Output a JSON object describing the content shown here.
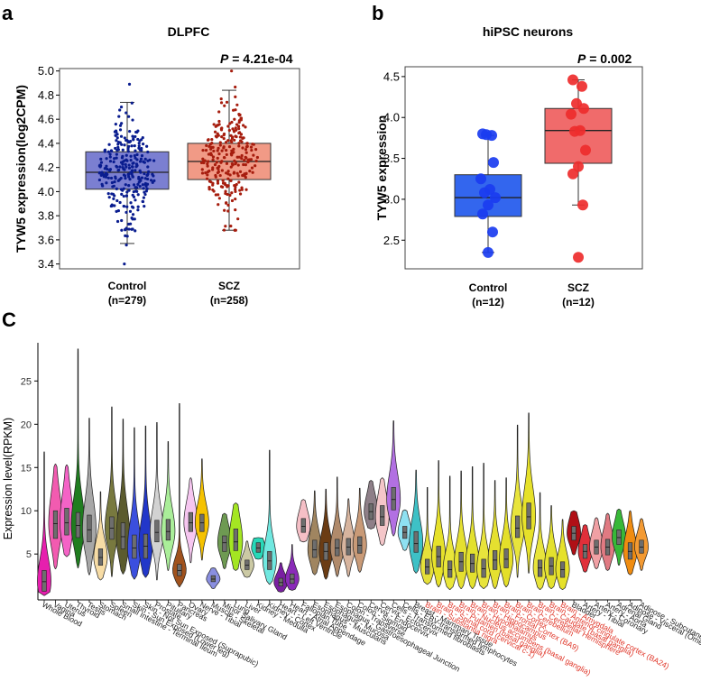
{
  "chart_data": [
    {
      "panel": "a",
      "type": "box",
      "title": "DLPFC",
      "pvalue_label": "P",
      "pvalue_text": " = 4.21e-04",
      "ylabel": "TYW5 expression(log2CPM)",
      "ylim": [
        3.36,
        5.02
      ],
      "yticks": [
        "3.4",
        "3.6",
        "3.8",
        "4.0",
        "4.2",
        "4.4",
        "4.6",
        "4.8",
        "5.0"
      ],
      "groups": [
        {
          "name": "Control",
          "n_label": "(n=279)",
          "n": 279,
          "fill": "#7b7fd1",
          "point": "#0a1d8f",
          "q1": 4.02,
          "median": 4.16,
          "q3": 4.33,
          "whisker_low": 3.57,
          "whisker_high": 4.74,
          "min": 3.4,
          "max": 4.89
        },
        {
          "name": "SCZ",
          "n_label": "(n=258)",
          "n": 258,
          "fill": "#f19a86",
          "point": "#a61d0e",
          "q1": 4.1,
          "median": 4.25,
          "q3": 4.4,
          "whisker_low": 3.68,
          "whisker_high": 4.84,
          "min": 3.68,
          "max": 5.0
        }
      ]
    },
    {
      "panel": "b",
      "type": "box",
      "title": "hiPSC neurons",
      "pvalue_label": "P",
      "pvalue_text": " = 0.002",
      "ylabel": "TYW5 expression",
      "ylim": [
        2.15,
        4.62
      ],
      "yticks": [
        "2.5",
        "3.0",
        "3.5",
        "4.0",
        "4.5"
      ],
      "groups": [
        {
          "name": "Control",
          "n_label": "(n=12)",
          "n": 12,
          "fill": "#3366ee",
          "point": "#1a3cf0",
          "q1": 2.79,
          "median": 3.02,
          "q3": 3.3,
          "whisker_low": 2.35,
          "whisker_high": 3.78,
          "points": [
            3.8,
            3.78,
            3.79,
            3.45,
            3.25,
            3.12,
            3.08,
            3.02,
            2.93,
            2.82,
            2.6,
            2.35
          ]
        },
        {
          "name": "SCZ",
          "n_label": "(n=12)",
          "n": 12,
          "fill": "#f06b6b",
          "point": "#ee2d2d",
          "q1": 3.44,
          "median": 3.84,
          "q3": 4.11,
          "whisker_low": 2.93,
          "whisker_high": 4.46,
          "points": [
            4.46,
            4.38,
            4.17,
            4.11,
            4.04,
            3.84,
            3.83,
            3.6,
            3.4,
            3.31,
            2.93,
            2.29
          ]
        }
      ]
    },
    {
      "panel": "c",
      "type": "violin",
      "ylabel": "Expression level(RPKM)",
      "ylim": [
        -0.3,
        29
      ],
      "yticks": [
        {
          "v": 5,
          "label": "5"
        },
        {
          "v": 10,
          "label": "10"
        },
        {
          "v": 15,
          "label": "15"
        },
        {
          "v": 20,
          "label": "20"
        },
        {
          "v": 25,
          "label": "25"
        }
      ],
      "brain_label_color": "#e0372a",
      "tissues": [
        {
          "label": "Whole Blood",
          "color": "#e61fae",
          "min": 0.2,
          "max": 16.8,
          "q1": 0.7,
          "med": 1.8,
          "q3": 3.1,
          "brain": false
        },
        {
          "label": "Vagina",
          "color": "#f25bb0",
          "min": 3.3,
          "max": 15.4,
          "q1": 6.8,
          "med": 8.5,
          "q3": 10.0,
          "brain": false
        },
        {
          "label": "Uterus",
          "color": "#f463c6",
          "min": 4.7,
          "max": 15.3,
          "q1": 7.2,
          "med": 8.6,
          "q3": 10.3,
          "brain": false
        },
        {
          "label": "Thyroid",
          "color": "#1f7d1f",
          "min": 3.4,
          "max": 28.7,
          "q1": 6.9,
          "med": 8.3,
          "q3": 9.8,
          "brain": false
        },
        {
          "label": "Testis",
          "color": "#a7a7a7",
          "min": 2.6,
          "max": 20.7,
          "q1": 6.4,
          "med": 7.8,
          "q3": 9.5,
          "brain": false
        },
        {
          "label": "Stomach",
          "color": "#f7dca5",
          "min": 2.0,
          "max": 12.2,
          "q1": 3.7,
          "med": 4.6,
          "q3": 5.6,
          "brain": false
        },
        {
          "label": "Spleen",
          "color": "#78793f",
          "min": 2.4,
          "max": 22.0,
          "q1": 6.7,
          "med": 8.0,
          "q3": 9.3,
          "brain": false
        },
        {
          "label": "Small Intestine - Terminal Ileum",
          "color": "#5b5b2e",
          "min": 2.7,
          "max": 20.6,
          "q1": 5.6,
          "med": 7.0,
          "q3": 8.6,
          "brain": false
        },
        {
          "label": "Skin - Sun Exposed (Lower leg)",
          "color": "#3b4fde",
          "min": 2.1,
          "max": 19.6,
          "q1": 4.5,
          "med": 5.7,
          "q3": 7.2,
          "brain": false
        },
        {
          "label": "Skin - Not Sun Exposed (Suprapubic)",
          "color": "#2237c9",
          "min": 2.3,
          "max": 19.8,
          "q1": 4.5,
          "med": 5.9,
          "q3": 7.3,
          "brain": false
        },
        {
          "label": "Prostate",
          "color": "#d2d2d2",
          "min": 2.0,
          "max": 20.2,
          "q1": 6.4,
          "med": 7.5,
          "q3": 8.9,
          "brain": false
        },
        {
          "label": "Pituitary",
          "color": "#aaee99",
          "min": 3.1,
          "max": 18.0,
          "q1": 6.6,
          "med": 7.6,
          "q3": 9.0,
          "brain": false
        },
        {
          "label": "Pancreas",
          "color": "#a0521d",
          "min": 1.2,
          "max": 22.4,
          "q1": 2.5,
          "med": 3.1,
          "q3": 3.8,
          "brain": false
        },
        {
          "label": "Ovary",
          "color": "#f6c6f0",
          "min": 4.0,
          "max": 13.8,
          "q1": 7.6,
          "med": 8.6,
          "q3": 9.8,
          "brain": false
        },
        {
          "label": "Nerve - Tibial",
          "color": "#f5c200",
          "min": 4.3,
          "max": 16.0,
          "q1": 7.6,
          "med": 8.6,
          "q3": 9.6,
          "brain": false
        },
        {
          "label": "Muscle - Skeletal",
          "color": "#8a8fe0",
          "min": 1.0,
          "max": 3.4,
          "q1": 1.8,
          "med": 2.1,
          "q3": 2.5,
          "brain": false
        },
        {
          "label": "Minor Salivary Gland",
          "color": "#6e9a52",
          "min": 3.3,
          "max": 9.7,
          "q1": 5.3,
          "med": 6.3,
          "q3": 7.1,
          "brain": false
        },
        {
          "label": "Lung",
          "color": "#a4e622",
          "min": 3.1,
          "max": 10.9,
          "q1": 5.4,
          "med": 6.4,
          "q3": 7.9,
          "brain": false
        },
        {
          "label": "Liver",
          "color": "#cbc9a4",
          "min": 2.3,
          "max": 6.5,
          "q1": 3.2,
          "med": 3.7,
          "q3": 4.3,
          "brain": false
        },
        {
          "label": "Kidney - Medulla",
          "color": "#28d8b8",
          "min": 4.4,
          "max": 6.9,
          "q1": 5.2,
          "med": 5.7,
          "q3": 6.3,
          "brain": false
        },
        {
          "label": "Kidney - Cortex",
          "color": "#70e8e0",
          "min": 1.5,
          "max": 17.0,
          "q1": 3.2,
          "med": 4.2,
          "q3": 5.3,
          "brain": false
        },
        {
          "label": "Heart - Left Ventricle",
          "color": "#7a1fa2",
          "min": 0.6,
          "max": 4.0,
          "q1": 1.3,
          "med": 1.7,
          "q3": 2.2,
          "brain": false
        },
        {
          "label": "Heart - Atrial Appendage",
          "color": "#8a2bb8",
          "min": 0.8,
          "max": 6.1,
          "q1": 1.6,
          "med": 2.1,
          "q3": 2.7,
          "brain": false
        },
        {
          "label": "Fallopian Tube",
          "color": "#f5bfc6",
          "min": 6.4,
          "max": 11.3,
          "q1": 7.5,
          "med": 8.2,
          "q3": 9.1,
          "brain": false
        },
        {
          "label": "Esophagus - Muscularis",
          "color": "#a08560",
          "min": 2.6,
          "max": 12.3,
          "q1": 4.6,
          "med": 5.5,
          "q3": 6.6,
          "brain": false
        },
        {
          "label": "Esophagus - Mucosa",
          "color": "#6b3c14",
          "min": 2.1,
          "max": 12.5,
          "q1": 4.3,
          "med": 5.3,
          "q3": 6.3,
          "brain": false
        },
        {
          "label": "Esophagus - Gastroesophageal Junction",
          "color": "#b08a6b",
          "min": 2.4,
          "max": 13.9,
          "q1": 4.8,
          "med": 5.7,
          "q3": 6.7,
          "brain": false
        },
        {
          "label": "Colon - Transverse",
          "color": "#d7b49e",
          "min": 2.4,
          "max": 11.4,
          "q1": 4.9,
          "med": 5.8,
          "q3": 6.8,
          "brain": false
        },
        {
          "label": "Colon - Sigmoid",
          "color": "#c99a77",
          "min": 2.9,
          "max": 12.6,
          "q1": 5.1,
          "med": 6.0,
          "q3": 7.0,
          "brain": false
        },
        {
          "label": "Cervix - Endocervix",
          "color": "#8e7f88",
          "min": 7.9,
          "max": 13.5,
          "q1": 9.0,
          "med": 9.9,
          "q3": 10.8,
          "brain": false
        },
        {
          "label": "Cervix - Ectocervix",
          "color": "#f4c6c9",
          "min": 6.0,
          "max": 13.8,
          "q1": 8.3,
          "med": 9.3,
          "q3": 10.6,
          "brain": false
        },
        {
          "label": "Cells - Transformed fibroblasts",
          "color": "#b270e2",
          "min": 7.1,
          "max": 20.4,
          "q1": 10.1,
          "med": 11.3,
          "q3": 12.7,
          "brain": false
        },
        {
          "label": "Cells - EBV-transformed lymphocytes",
          "color": "#8ee1f2",
          "min": 5.4,
          "max": 10.1,
          "q1": 6.8,
          "med": 7.5,
          "q3": 8.2,
          "brain": false
        },
        {
          "label": "Breast - Mammary Tissue",
          "color": "#3ec1c6",
          "min": 2.8,
          "max": 14.7,
          "q1": 5.2,
          "med": 6.2,
          "q3": 7.6,
          "brain": false
        },
        {
          "label": "Brain - Substantia nigra",
          "color": "#e5e03a",
          "min": 1.5,
          "max": 12.7,
          "q1": 2.7,
          "med": 3.5,
          "q3": 4.4,
          "brain": true
        },
        {
          "label": "Brain - Spinal cord (cervical c-1)",
          "color": "#e6e12a",
          "min": 1.2,
          "max": 15.8,
          "q1": 3.5,
          "med": 4.7,
          "q3": 5.9,
          "brain": true
        },
        {
          "label": "Brain - Putamen (basal ganglia)",
          "color": "#eae63a",
          "min": 0.9,
          "max": 14.0,
          "q1": 2.3,
          "med": 3.2,
          "q3": 4.2,
          "brain": true
        },
        {
          "label": "Brain - Nucleus accumbens (basal ganglia)",
          "color": "#e5e030",
          "min": 1.0,
          "max": 14.6,
          "q1": 3.0,
          "med": 4.1,
          "q3": 5.2,
          "brain": true
        },
        {
          "label": "Brain - Hypothalamus",
          "color": "#e3e12e",
          "min": 1.0,
          "max": 15.1,
          "q1": 2.9,
          "med": 3.9,
          "q3": 5.0,
          "brain": true
        },
        {
          "label": "Brain - Hippocampus",
          "color": "#e8e43c",
          "min": 1.0,
          "max": 15.5,
          "q1": 2.3,
          "med": 3.3,
          "q3": 4.4,
          "brain": true
        },
        {
          "label": "Brain - Frontal Cortex (BA9)",
          "color": "#e5e030",
          "min": 1.0,
          "max": 13.5,
          "q1": 3.2,
          "med": 4.3,
          "q3": 5.4,
          "brain": true
        },
        {
          "label": "Brain - Cortex",
          "color": "#e4df2a",
          "min": 1.2,
          "max": 13.8,
          "q1": 3.4,
          "med": 4.4,
          "q3": 5.6,
          "brain": true
        },
        {
          "label": "Brain - Cerebellum",
          "color": "#e8e43c",
          "min": 2.3,
          "max": 19.9,
          "q1": 6.9,
          "med": 8.0,
          "q3": 9.4,
          "brain": true
        },
        {
          "label": "Brain - Cerebellar Hemisphere",
          "color": "#e6e12a",
          "min": 2.8,
          "max": 21.3,
          "q1": 7.9,
          "med": 9.3,
          "q3": 10.9,
          "brain": true
        },
        {
          "label": "Brain - Caudate (basal ganglia)",
          "color": "#e8e43c",
          "min": 0.9,
          "max": 12.1,
          "q1": 2.4,
          "med": 3.4,
          "q3": 4.3,
          "brain": true
        },
        {
          "label": "Brain - Anterior cingulate cortex (BA24)",
          "color": "#e3e12e",
          "min": 1.0,
          "max": 10.6,
          "q1": 2.6,
          "med": 3.6,
          "q3": 4.6,
          "brain": true
        },
        {
          "label": "Brain - Amygdala",
          "color": "#e6e12a",
          "min": 0.9,
          "max": 9.0,
          "q1": 2.3,
          "med": 3.2,
          "q3": 4.1,
          "brain": true
        },
        {
          "label": "Bladder",
          "color": "#b01016",
          "min": 4.9,
          "max": 10.0,
          "q1": 6.6,
          "med": 7.4,
          "q3": 8.2,
          "brain": false
        },
        {
          "label": "Artery - Tibial",
          "color": "#e0303a",
          "min": 2.9,
          "max": 8.4,
          "q1": 4.5,
          "med": 5.3,
          "q3": 6.1,
          "brain": false
        },
        {
          "label": "Artery - Coronary",
          "color": "#f0a0a4",
          "min": 3.3,
          "max": 9.2,
          "q1": 5.0,
          "med": 5.8,
          "q3": 6.6,
          "brain": false
        },
        {
          "label": "Artery - Aorta",
          "color": "#e07a82",
          "min": 3.1,
          "max": 9.7,
          "q1": 4.9,
          "med": 5.8,
          "q3": 6.7,
          "brain": false
        },
        {
          "label": "Adrenal Gland",
          "color": "#38b838",
          "min": 3.7,
          "max": 10.2,
          "q1": 6.1,
          "med": 6.9,
          "q3": 7.8,
          "brain": false
        },
        {
          "label": "Adipose - Visceral (Omentum)",
          "color": "#f08c10",
          "min": 2.6,
          "max": 10.0,
          "q1": 4.4,
          "med": 5.3,
          "q3": 6.3,
          "brain": false
        },
        {
          "label": "Adipose - Subcutaneous",
          "color": "#f39a33",
          "min": 3.1,
          "max": 9.1,
          "q1": 5.1,
          "med": 5.8,
          "q3": 6.6,
          "brain": false
        }
      ]
    }
  ]
}
